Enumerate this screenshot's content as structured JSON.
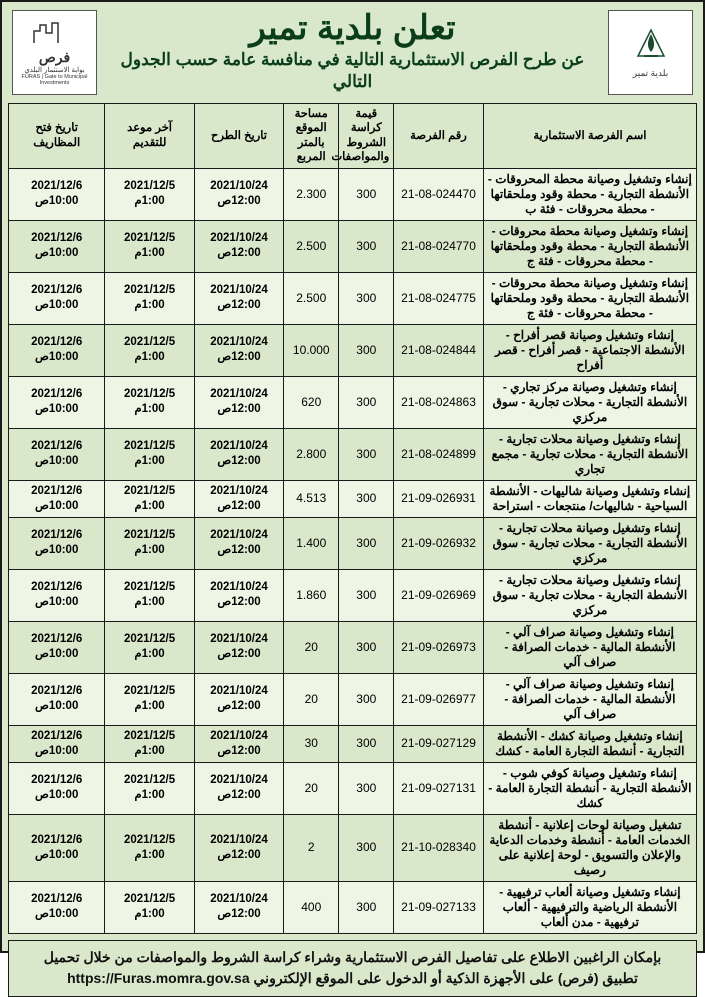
{
  "header": {
    "title": "تعلن بلدية تمير",
    "subtitle": "عن طرح الفرص الاستثمارية التالية في منافسة عامة حسب الجدول التالي",
    "logo_right_lines": [
      "بلدية تمير"
    ],
    "logo_left_lines": [
      "فرص",
      "بوابة الاستثمار البلدي",
      "FURAS | Gate to Municipal Investments"
    ]
  },
  "columns": [
    "اسم الفرصة الاستثمارية",
    "رقم الفرصة",
    "قيمة كراسة الشروط والمواصفات",
    "مساحة الموقع بالمتر المربع",
    "تاريخ الطرح",
    "آخر موعد للتقديم",
    "تاريخ فتح المظاريف"
  ],
  "common": {
    "d1_date": "2021/10/24",
    "d1_time": "12:00ص",
    "d2_date": "2021/12/5",
    "d2_time": "1:00م",
    "d3_date": "2021/12/6",
    "d3_time": "10:00ص",
    "fee": "300"
  },
  "rows": [
    {
      "name": "إنشاء وتشغيل وصيانة محطة المحروقات - الأنشطة التجارية - محطة وقود وملحقاتها - محطة محروقات - فئة ب",
      "num": "21-08-024470",
      "area": "2.300"
    },
    {
      "name": "إنشاء وتشغيل وصيانة محطة محروقات - الأنشطة التجارية - محطة وقود وملحقاتها - محطة محروقات - فئة ج",
      "num": "21-08-024770",
      "area": "2.500"
    },
    {
      "name": "إنشاء وتشغيل وصيانة محطة محروقات - الأنشطة التجارية - محطة وقود وملحقاتها - محطة محروقات - فئة ج",
      "num": "21-08-024775",
      "area": "2.500"
    },
    {
      "name": "إنشاء وتشغيل وصيانة قصر أفراح - الأنشطة الاجتماعية - قصر أفراح - قصر أفراح",
      "num": "21-08-024844",
      "area": "10.000"
    },
    {
      "name": "إنشاء وتشغيل وصيانة مركز تجاري - الأنشطة التجارية - محلات تجارية - سوق مركزي",
      "num": "21-08-024863",
      "area": "620"
    },
    {
      "name": "إنشاء وتشغيل وصيانة محلات تجارية - الأنشطة التجارية - محلات تجارية - مجمع تجاري",
      "num": "21-08-024899",
      "area": "2.800"
    },
    {
      "name": "إنشاء وتشغيل وصيانة شاليهات - الأنشطة السياحية - شاليهات/ منتجعات - استراحة",
      "num": "21-09-026931",
      "area": "4.513"
    },
    {
      "name": "إنشاء وتشغيل وصيانة محلات تجارية - الأنشطة التجارية - محلات تجارية - سوق مركزي",
      "num": "21-09-026932",
      "area": "1.400"
    },
    {
      "name": "إنشاء وتشغيل وصيانة محلات تجارية - الأنشطة التجارية - محلات تجارية - سوق مركزي",
      "num": "21-09-026969",
      "area": "1.860"
    },
    {
      "name": "إنشاء وتشغيل وصيانة صراف آلي - الأنشطة المالية - خدمات الصرافة - صراف آلي",
      "num": "21-09-026973",
      "area": "20"
    },
    {
      "name": "إنشاء وتشغيل وصيانة صراف آلي - الأنشطة المالية - خدمات الصرافة - صراف آلي",
      "num": "21-09-026977",
      "area": "20"
    },
    {
      "name": "إنشاء وتشغيل وصيانة كشك - الأنشطة التجارية - أنشطة التجارة العامة - كشك",
      "num": "21-09-027129",
      "area": "30"
    },
    {
      "name": "إنشاء وتشغيل وصيانة كوفي شوب - الأنشطة التجارية - أنشطة التجارة العامة - كشك",
      "num": "21-09-027131",
      "area": "20"
    },
    {
      "name": "تشغيل وصيانة لوحات إعلانية - أنشطة الخدمات العامة - أنشطة وخدمات الدعاية والإعلان والتسويق - لوحة إعلانية على رصيف",
      "num": "21-10-028340",
      "area": "2"
    },
    {
      "name": "إنشاء وتشغيل وصيانة ألعاب ترفيهية - الأنشطة الرياضية والترفيهية - ألعاب ترفيهية - مدن ألعاب",
      "num": "21-09-027133",
      "area": "400"
    }
  ],
  "footer": {
    "line1": "بإمكان الراغبين الاطلاع على تفاصيل الفرص الاستثمارية وشراء كراسة الشروط والمواصفات من خلال تحميل",
    "line2_pre": "تطبيق (فرص) على الأجهزة الذكية أو الدخول على الموقع الإلكتروني",
    "url": "https://Furas.momra.gov.sa"
  },
  "style": {
    "page_bg": "#d9e8cb",
    "border_color": "#1a1a1a",
    "title_color": "#0a3d1a",
    "row_odd_bg": "#eef5e5",
    "row_even_bg": "#d9e8cb"
  }
}
